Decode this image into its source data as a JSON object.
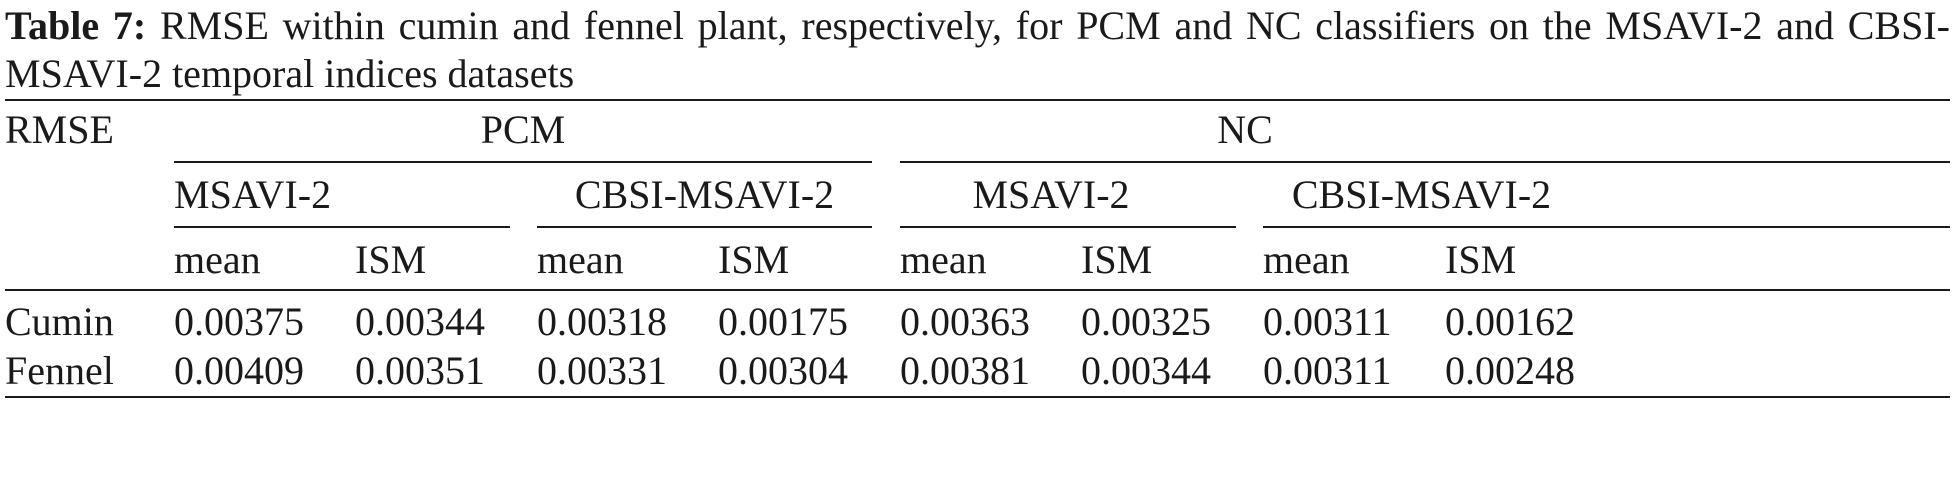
{
  "caption": {
    "label": "Table 7:",
    "text": "RMSE within cumin and fennel plant, respectively, for PCM and NC classifiers on the MSAVI-2 and CBSI-MSAVI-2 temporal indices datasets"
  },
  "table": {
    "corner_header": "RMSE",
    "classifiers": [
      "PCM",
      "NC"
    ],
    "datasets": [
      "MSAVI-2",
      "CBSI-MSAVI-2",
      "MSAVI-2",
      "CBSI-MSAVI-2"
    ],
    "stats": [
      "mean",
      "ISM",
      "mean",
      "ISM",
      "mean",
      "ISM",
      "mean",
      "ISM"
    ],
    "rows": [
      {
        "label": "Cumin",
        "values": [
          "0.00375",
          "0.00344",
          "0.00318",
          "0.00175",
          "0.00363",
          "0.00325",
          "0.00311",
          "0.00162"
        ]
      },
      {
        "label": "Fennel",
        "values": [
          "0.00409",
          "0.00351",
          "0.00331",
          "0.00304",
          "0.00381",
          "0.00344",
          "0.00311",
          "0.00248"
        ]
      }
    ]
  }
}
